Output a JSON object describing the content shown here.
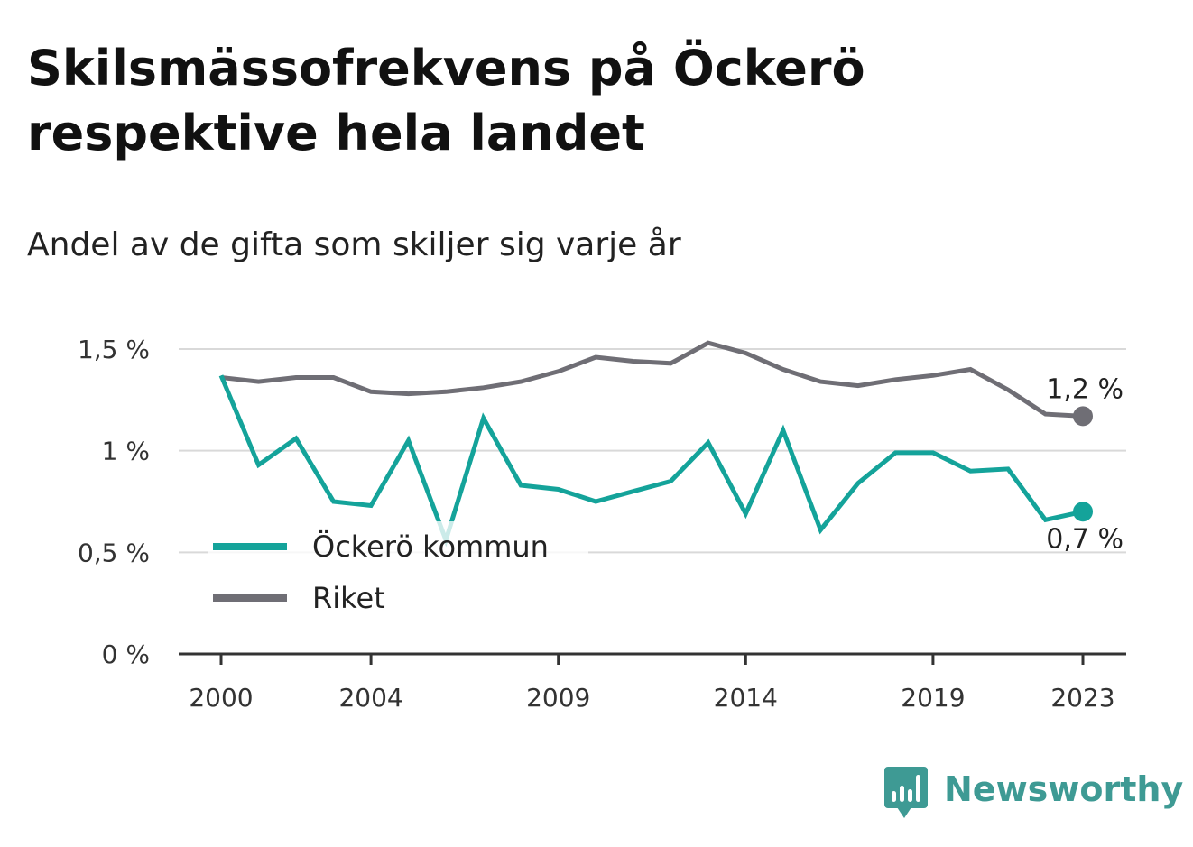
{
  "title": "Skilsmässofrekvens på Öckerö respektive hela landet",
  "subtitle": "Andel av de gifta som skiljer sig varje år",
  "brand": {
    "name": "Newsworthy",
    "color": "#3e9a94",
    "icon": "bar-chart-speech-icon"
  },
  "chart_data": {
    "type": "line",
    "title": "Skilsmässofrekvens på Öckerö respektive hela landet",
    "subtitle": "Andel av de gifta som skiljer sig varje år",
    "xlabel": "",
    "ylabel": "",
    "x": [
      2000,
      2001,
      2002,
      2003,
      2004,
      2005,
      2006,
      2007,
      2008,
      2009,
      2010,
      2011,
      2012,
      2013,
      2014,
      2015,
      2016,
      2017,
      2018,
      2019,
      2020,
      2021,
      2022,
      2023
    ],
    "ylim": [
      0,
      1.5
    ],
    "y_ticks": [
      {
        "value": 0,
        "label": "0 %"
      },
      {
        "value": 0.5,
        "label": "0,5 %"
      },
      {
        "value": 1,
        "label": "1 %"
      },
      {
        "value": 1.5,
        "label": "1,5 %"
      }
    ],
    "x_ticks": [
      {
        "value": 2000,
        "label": "2000"
      },
      {
        "value": 2004,
        "label": "2004"
      },
      {
        "value": 2009,
        "label": "2009"
      },
      {
        "value": 2014,
        "label": "2014"
      },
      {
        "value": 2019,
        "label": "2019"
      },
      {
        "value": 2023,
        "label": "2023"
      }
    ],
    "grid": true,
    "legend_position": "bottom-left",
    "series": [
      {
        "name": "Öckerö kommun",
        "color": "#14a39a",
        "values": [
          1.37,
          0.93,
          1.06,
          0.75,
          0.73,
          1.05,
          0.56,
          1.16,
          0.83,
          0.81,
          0.75,
          0.8,
          0.85,
          1.04,
          0.69,
          1.1,
          0.61,
          0.84,
          0.99,
          0.99,
          0.9,
          0.91,
          0.66,
          0.7
        ],
        "end_label": "0,7 %"
      },
      {
        "name": "Riket",
        "color": "#6f6e75",
        "values": [
          1.36,
          1.34,
          1.36,
          1.36,
          1.29,
          1.28,
          1.29,
          1.31,
          1.34,
          1.39,
          1.46,
          1.44,
          1.43,
          1.53,
          1.48,
          1.4,
          1.34,
          1.32,
          1.35,
          1.37,
          1.4,
          1.3,
          1.18,
          1.17
        ],
        "end_label": "1,2 %"
      }
    ]
  }
}
